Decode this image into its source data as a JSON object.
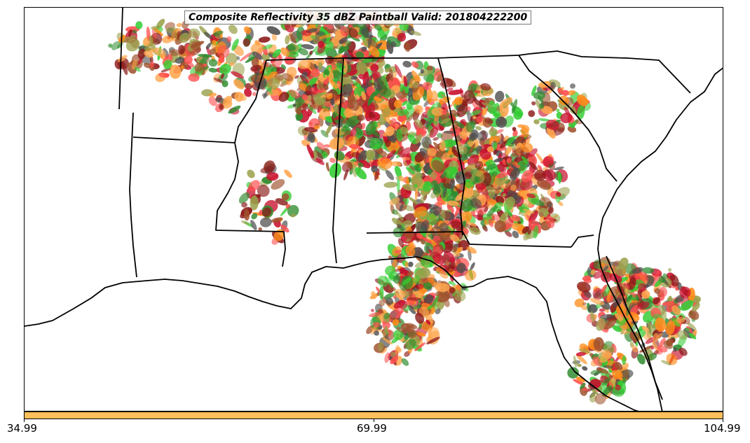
{
  "title": "Composite Reflectivity 35 dBZ Paintball Valid: 201804222200",
  "colorbar": {
    "color": "#ffbf5a",
    "ticks": [
      "34.99",
      "69.99",
      "104.99"
    ],
    "min": 34.99,
    "max": 104.99
  },
  "map": {
    "region": "Southeastern United States",
    "land_color": "#ffffff",
    "border_color": "#000000",
    "paintball_colors": [
      "#ff4d4d",
      "#ff8c1a",
      "#ffa64d",
      "#8b1a1a",
      "#4d4d4d",
      "#2e8b2e",
      "#33cc33",
      "#9aa04a",
      "#a0522d",
      "#c8102e"
    ]
  }
}
